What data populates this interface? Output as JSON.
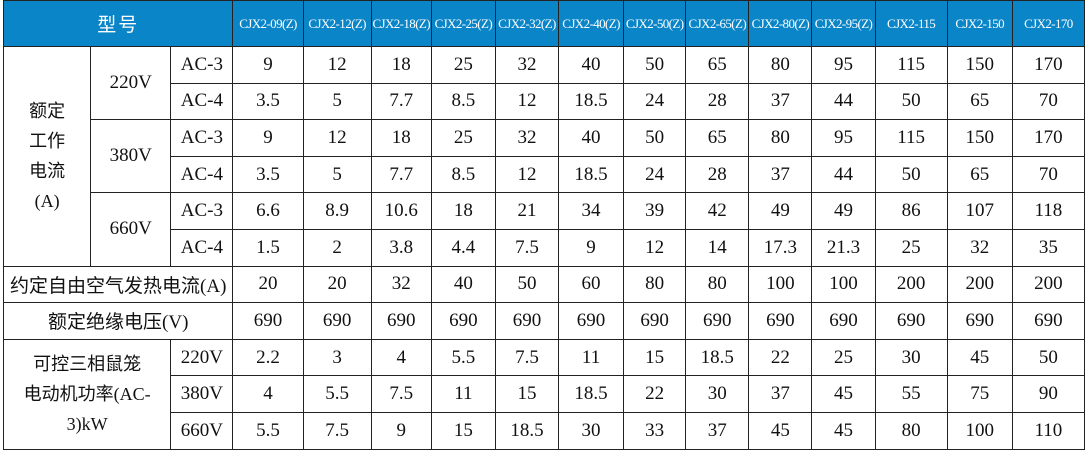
{
  "header": {
    "title": "型号",
    "models": [
      "CJX2-09(Z)",
      "CJX2-12(Z)",
      "CJX2-18(Z)",
      "CJX2-25(Z)",
      "CJX2-32(Z)",
      "CJX2-40(Z)",
      "CJX2-50(Z)",
      "CJX2-65(Z)",
      "CJX2-80(Z)",
      "CJX2-95(Z)",
      "CJX2-115",
      "CJX2-150",
      "CJX2-170"
    ]
  },
  "rated_current": {
    "label": "额定工作电流(A)",
    "label_lines": [
      "额定",
      "工作",
      "电流",
      "(A)"
    ],
    "groups": [
      {
        "voltage": "220V",
        "rows": [
          {
            "category": "AC-3",
            "values": [
              "9",
              "12",
              "18",
              "25",
              "32",
              "40",
              "50",
              "65",
              "80",
              "95",
              "115",
              "150",
              "170"
            ]
          },
          {
            "category": "AC-4",
            "values": [
              "3.5",
              "5",
              "7.7",
              "8.5",
              "12",
              "18.5",
              "24",
              "28",
              "37",
              "44",
              "50",
              "65",
              "70"
            ]
          }
        ]
      },
      {
        "voltage": "380V",
        "rows": [
          {
            "category": "AC-3",
            "values": [
              "9",
              "12",
              "18",
              "25",
              "32",
              "40",
              "50",
              "65",
              "80",
              "95",
              "115",
              "150",
              "170"
            ]
          },
          {
            "category": "AC-4",
            "values": [
              "3.5",
              "5",
              "7.7",
              "8.5",
              "12",
              "18.5",
              "24",
              "28",
              "37",
              "44",
              "50",
              "65",
              "70"
            ]
          }
        ]
      },
      {
        "voltage": "660V",
        "rows": [
          {
            "category": "AC-3",
            "values": [
              "6.6",
              "8.9",
              "10.6",
              "18",
              "21",
              "34",
              "39",
              "42",
              "49",
              "49",
              "86",
              "107",
              "118"
            ]
          },
          {
            "category": "AC-4",
            "values": [
              "1.5",
              "2",
              "3.8",
              "4.4",
              "7.5",
              "9",
              "12",
              "14",
              "17.3",
              "21.3",
              "25",
              "32",
              "35"
            ]
          }
        ]
      }
    ]
  },
  "thermal_current": {
    "label": "约定自由空气发热电流(A)",
    "values": [
      "20",
      "20",
      "32",
      "40",
      "50",
      "60",
      "80",
      "80",
      "100",
      "100",
      "200",
      "200",
      "200"
    ]
  },
  "insulation_voltage": {
    "label": "额定绝缘电压(V)",
    "values": [
      "690",
      "690",
      "690",
      "690",
      "690",
      "690",
      "690",
      "690",
      "690",
      "690",
      "690",
      "690",
      "690"
    ]
  },
  "motor_power": {
    "label_lines": [
      "可控三相鼠笼",
      "电动机功率(AC-3)kW"
    ],
    "rows": [
      {
        "voltage": "220V",
        "values": [
          "2.2",
          "3",
          "4",
          "5.5",
          "7.5",
          "11",
          "15",
          "18.5",
          "22",
          "25",
          "30",
          "45",
          "50"
        ]
      },
      {
        "voltage": "380V",
        "values": [
          "4",
          "5.5",
          "7.5",
          "11",
          "15",
          "18.5",
          "22",
          "30",
          "37",
          "45",
          "55",
          "75",
          "90"
        ]
      },
      {
        "voltage": "660V",
        "values": [
          "5.5",
          "7.5",
          "9",
          "15",
          "18.5",
          "30",
          "33",
          "37",
          "45",
          "45",
          "80",
          "100",
          "110"
        ]
      }
    ]
  },
  "colors": {
    "header_bg": "#0a85c8",
    "header_text": "#ffffff"
  }
}
